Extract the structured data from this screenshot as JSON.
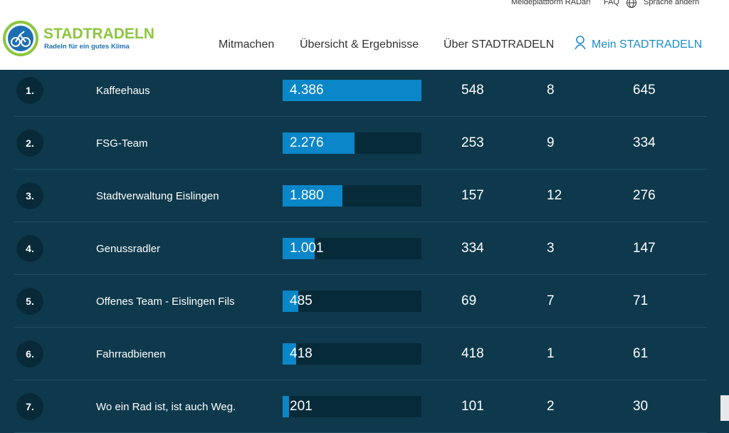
{
  "header": {
    "top_links": [
      "Meldeplattform RADar!",
      "FAQ",
      "Sprache ändern"
    ],
    "logo_title": "STADTRADELN",
    "logo_subtitle": "Radeln für ein gutes Klima",
    "nav": [
      "Mitmachen",
      "Übersicht & Ergebnisse",
      "Über STADTRADELN",
      "Mein STADTRADELN"
    ]
  },
  "table": {
    "rows": [
      {
        "rank": "1.",
        "name": "Kaffeehaus",
        "km": {
          "value": 4386,
          "label": "4.386"
        },
        "col2": 548,
        "col3": 8,
        "col4": 645
      },
      {
        "rank": "2.",
        "name": "FSG-Team",
        "km": {
          "value": 2276,
          "label": "2.276"
        },
        "col2": 253,
        "col3": 9,
        "col4": 334
      },
      {
        "rank": "3.",
        "name": "Stadtverwaltung Eislingen",
        "km": {
          "value": 1880,
          "label": "1.880"
        },
        "col2": 157,
        "col3": 12,
        "col4": 276
      },
      {
        "rank": "4.",
        "name": "Genussradler",
        "km": {
          "value": 1001,
          "label": "1.001"
        },
        "col2": 334,
        "col3": 3,
        "col4": 147
      },
      {
        "rank": "5.",
        "name": "Offenes Team - Eislingen Fils",
        "km": 485,
        "col2": 69,
        "col3": 7,
        "col4": 71
      },
      {
        "rank": "6.",
        "name": "Fahrradbienen",
        "km": 418,
        "col2": 418,
        "col3": 1,
        "col4": 61
      },
      {
        "rank": "7.",
        "name": "Wo ein Rad ist, ist auch Weg.",
        "km": 201,
        "col2": 101,
        "col3": 2,
        "col4": 30
      }
    ]
  }
}
